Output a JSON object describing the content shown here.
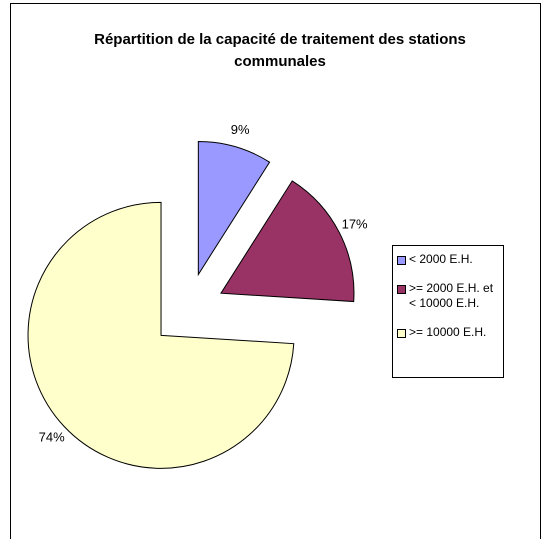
{
  "chart_data": {
    "type": "pie",
    "title": "Répartition de la capacité de traitement des stations communales",
    "categories": [
      "< 2000 E.H.",
      ">= 2000 E.H. et < 10000 E.H.",
      ">= 10000 E.H."
    ],
    "values": [
      9,
      17,
      74
    ],
    "value_labels": [
      "9%",
      "17%",
      "74%"
    ],
    "colors": [
      "#9999ff",
      "#993366",
      "#ffffcc"
    ],
    "legend": "right"
  }
}
